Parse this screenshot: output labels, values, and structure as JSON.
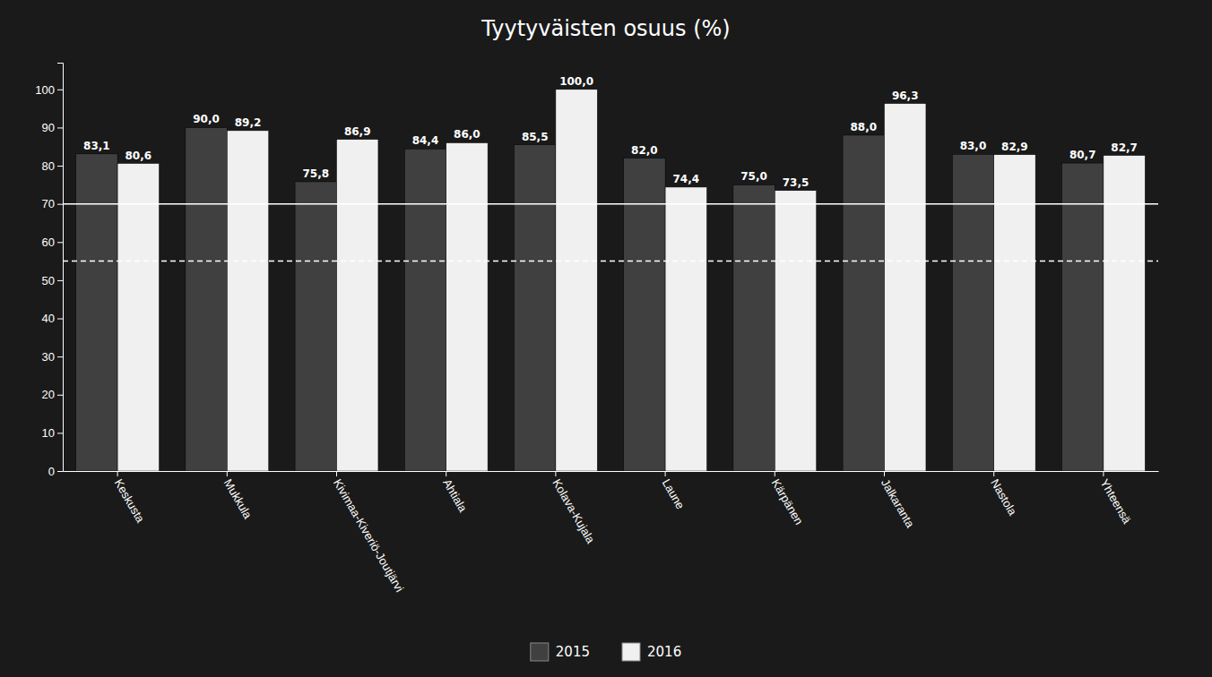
{
  "chart_data": {
    "type": "bar",
    "title": "Tyytyväisten osuus (%)",
    "categories": [
      "Keskusta",
      "Mukkula",
      "Kivimaa-Kiveriö-Joutjärvi",
      "Ahtiala",
      "Kolava-Kujala",
      "Laune",
      "Kärpänen",
      "Jalkaranta",
      "Nastola",
      "Yhteensä"
    ],
    "series": [
      {
        "name": "2015",
        "color": "#404040",
        "values": [
          83.1,
          90.0,
          75.8,
          84.4,
          85.5,
          82.0,
          75.0,
          88.0,
          83.0,
          80.7
        ],
        "value_labels": [
          "83,1",
          "90,0",
          "75,8",
          "84,4",
          "85,5",
          "82,0",
          "75,0",
          "88,0",
          "83,0",
          "80,7"
        ]
      },
      {
        "name": "2016",
        "color": "#f0f0f0",
        "values": [
          80.6,
          89.2,
          86.9,
          86.0,
          100.0,
          74.4,
          73.5,
          96.3,
          82.9,
          82.7
        ],
        "value_labels": [
          "80,6",
          "89,2",
          "86,9",
          "86,0",
          "100,0",
          "74,4",
          "73,5",
          "96,3",
          "82,9",
          "82,7"
        ]
      }
    ],
    "hlines": [
      {
        "value": 70,
        "color": "#ffffff",
        "line_style": "solid"
      },
      {
        "value": 55,
        "color": "#ffffff",
        "line_style": "dashed"
      }
    ],
    "ylim": [
      0,
      107
    ],
    "yticks": [
      0,
      10,
      20,
      30,
      40,
      50,
      60,
      70,
      80,
      90,
      100
    ],
    "data_labels": true,
    "grid": false,
    "legend": "bottom"
  }
}
